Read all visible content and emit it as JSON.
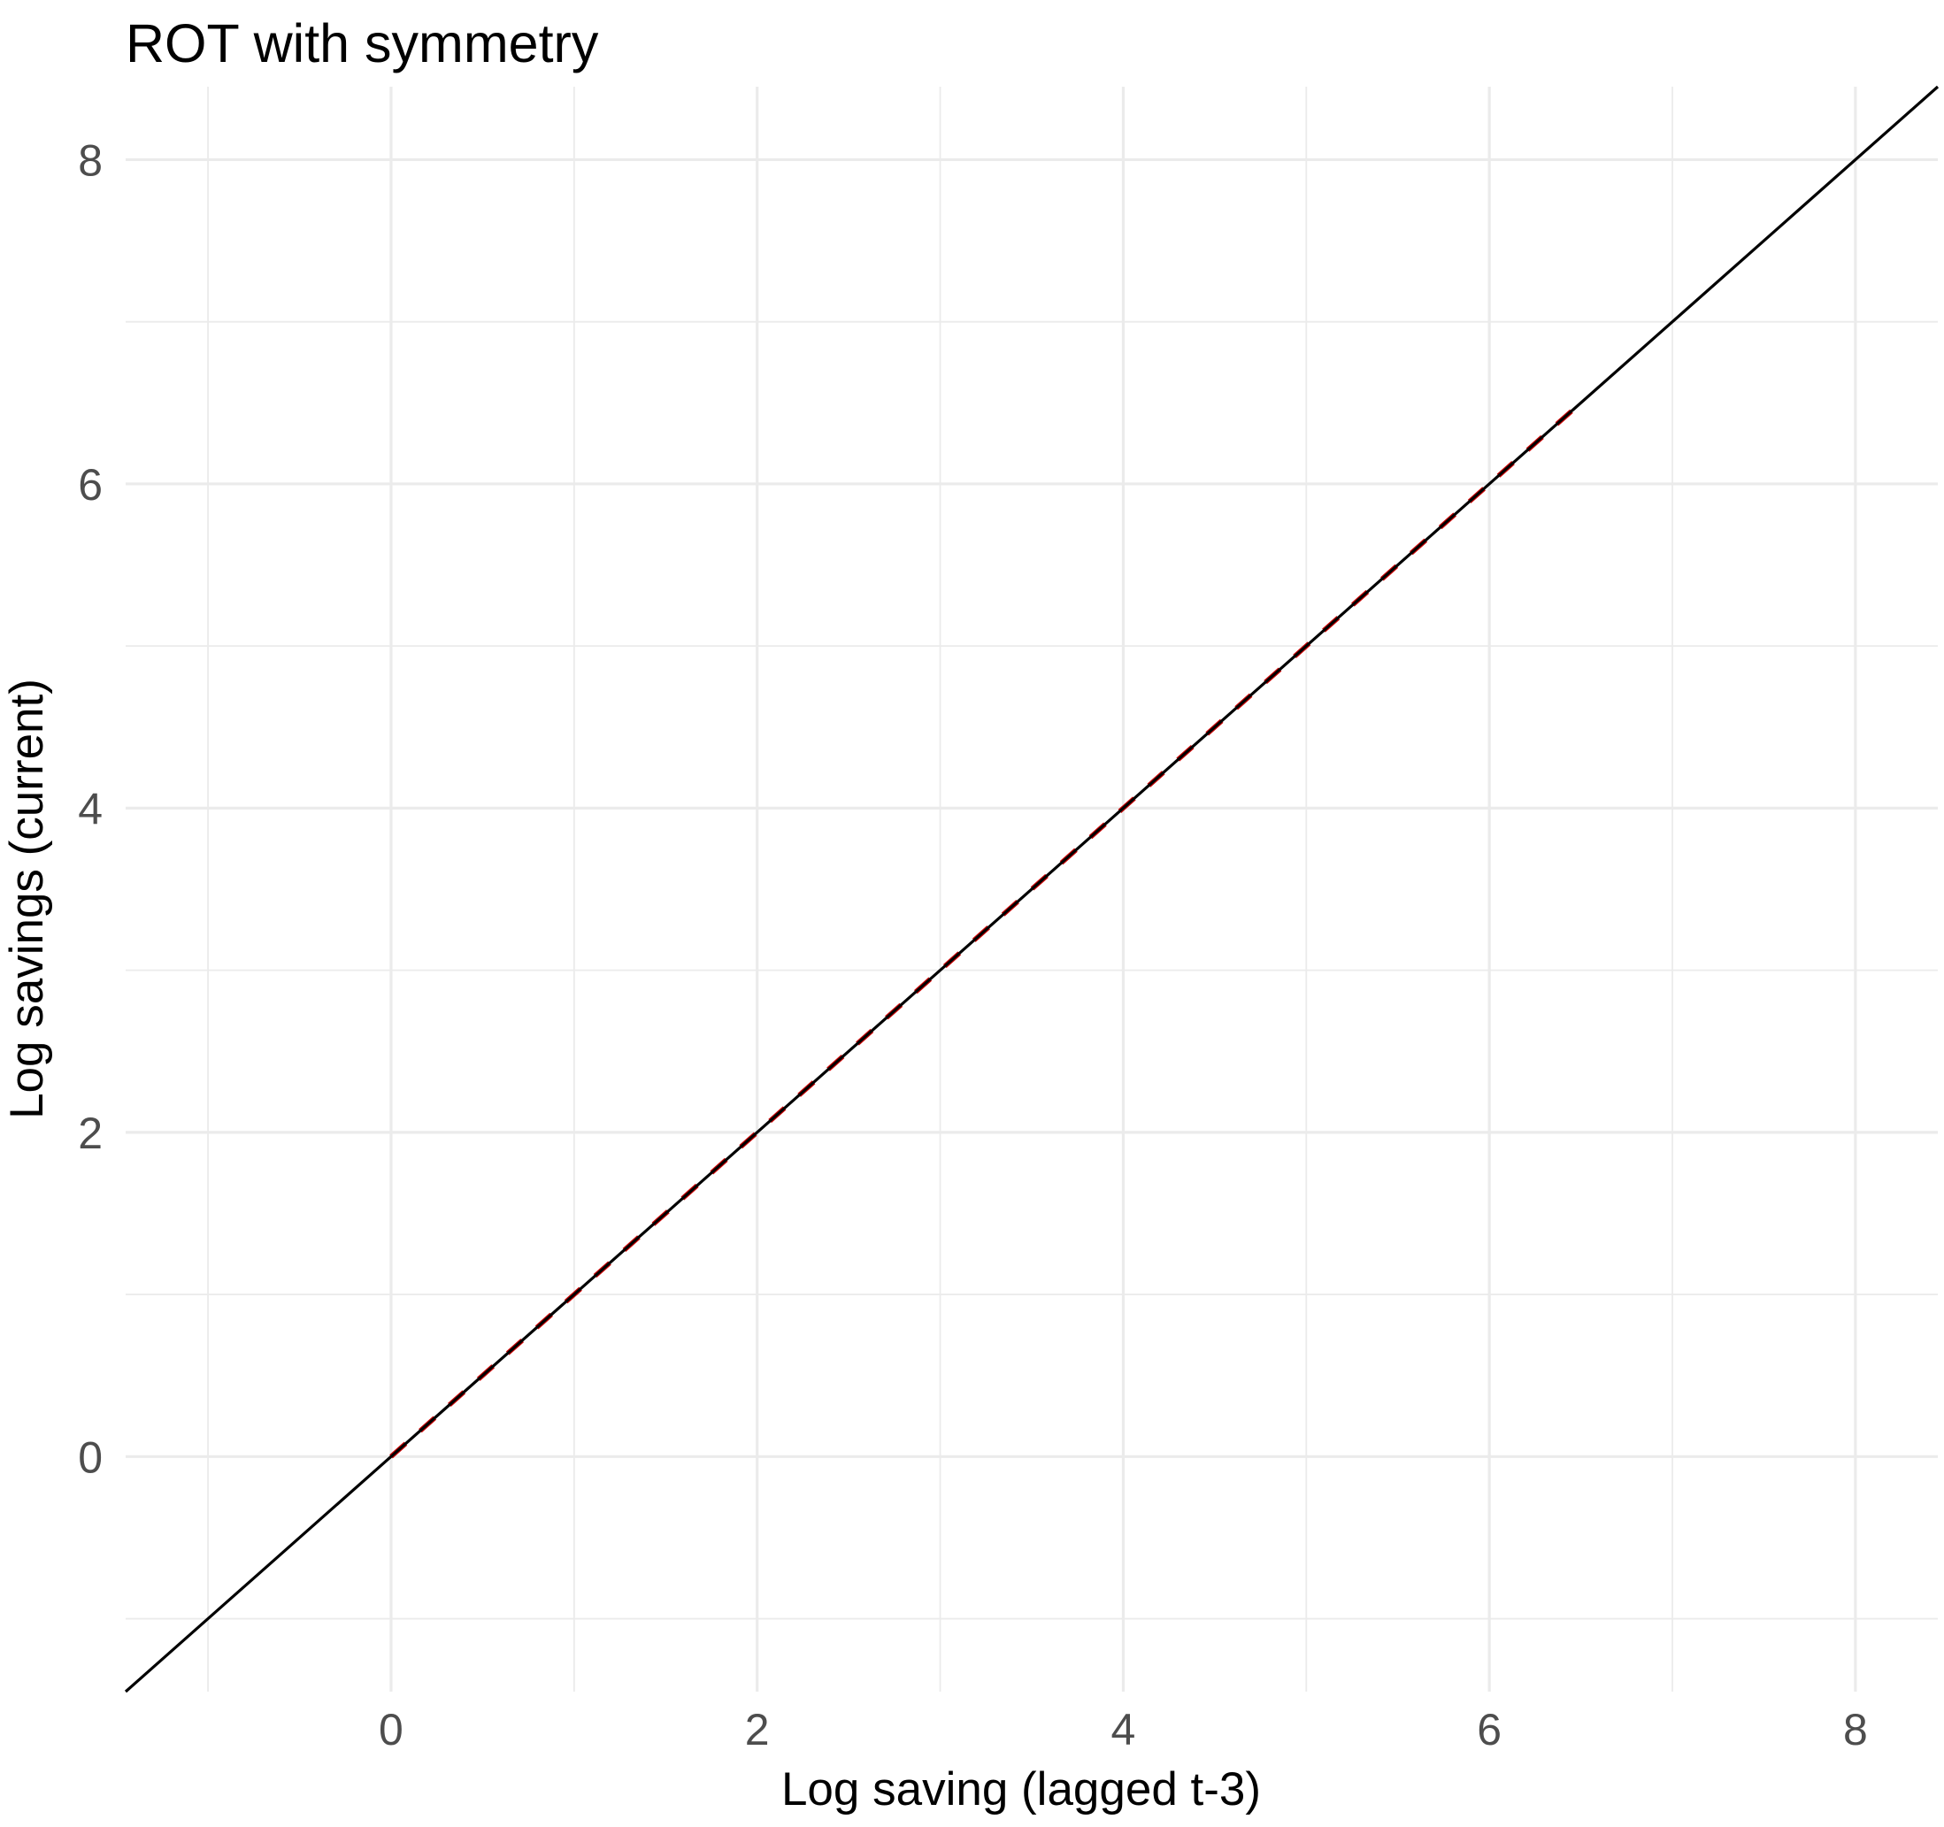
{
  "chart_data": {
    "type": "line",
    "title": "ROT with symmetry",
    "xlabel": "Log saving (lagged t-3)",
    "ylabel": "Log savings (current)",
    "xlim": [
      -1.45,
      8.45
    ],
    "ylim": [
      -1.45,
      8.45
    ],
    "x_ticks": [
      0,
      2,
      4,
      6,
      8
    ],
    "y_ticks": [
      0,
      2,
      4,
      6,
      8
    ],
    "x_minor_ticks": [
      -1,
      1,
      3,
      5,
      7
    ],
    "y_minor_ticks": [
      -1,
      1,
      3,
      5,
      7
    ],
    "grid": true,
    "legend": "none",
    "series": [
      {
        "style": "solid",
        "color": "#000000",
        "x": [
          -1.45,
          8.45
        ],
        "y": [
          -1.45,
          8.45
        ]
      },
      {
        "style": "dashed",
        "color": "#cc0000",
        "x": [
          0,
          6.5
        ],
        "y": [
          0,
          6.5
        ]
      }
    ]
  }
}
